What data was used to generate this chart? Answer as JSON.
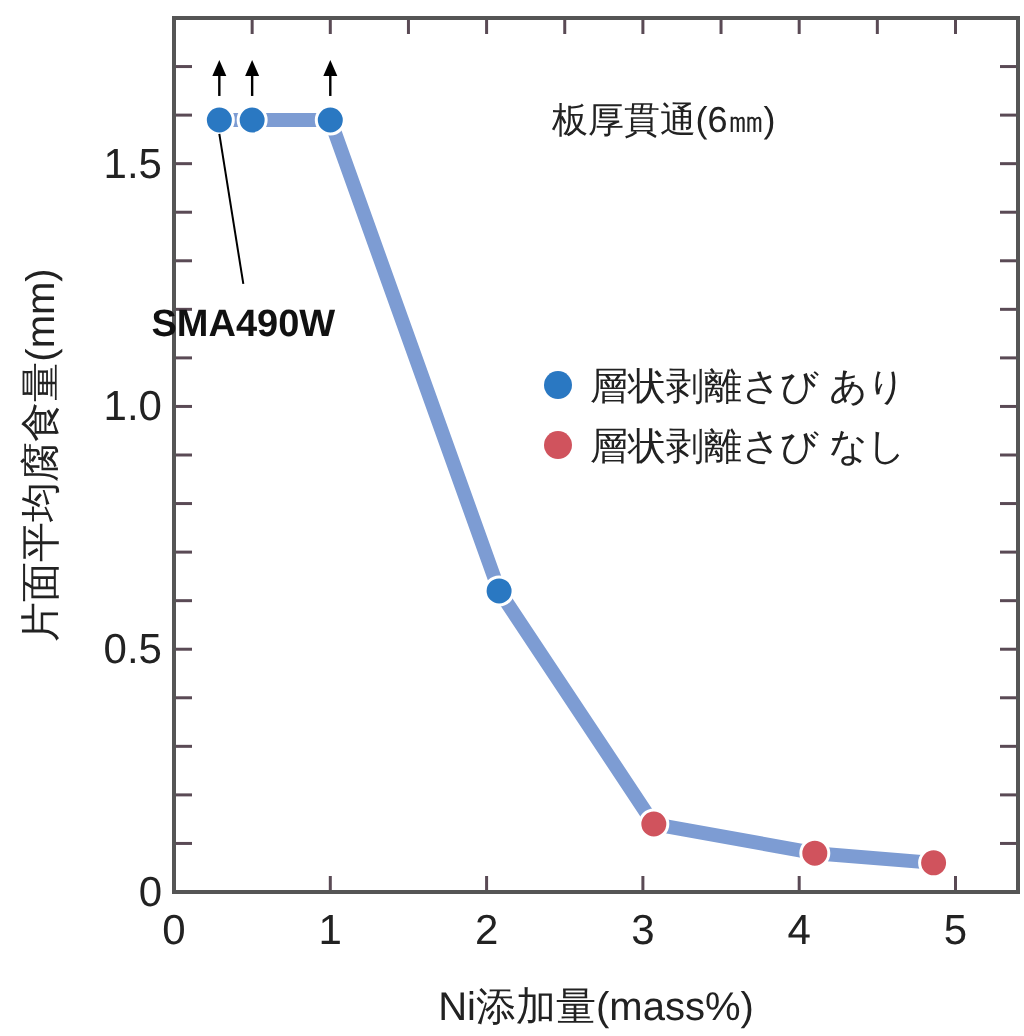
{
  "chart_data": {
    "type": "line",
    "xlabel": "Ni添加量(mass%)",
    "ylabel": "片面平均腐食量(mm)",
    "x": [
      0.29,
      0.5,
      1.0,
      2.08,
      3.07,
      4.1,
      4.86
    ],
    "series": [
      {
        "color": "#7d9cd3",
        "line_style": "solid",
        "values": [
          1.59,
          1.59,
          1.59,
          0.62,
          0.14,
          0.08,
          0.06
        ]
      },
      {
        "type": "scatter",
        "name": "層状剥離さび あり",
        "color": "#2a78c2",
        "marker": "circle",
        "values": [
          1.59,
          1.59,
          1.59,
          0.62,
          null,
          null,
          null
        ]
      },
      {
        "type": "scatter",
        "name": "層状剥離さび なし",
        "color": "#d0535d",
        "marker": "circle",
        "values": [
          null,
          null,
          null,
          null,
          0.14,
          0.08,
          0.06
        ]
      }
    ],
    "xlim": [
      0,
      5.4
    ],
    "xticks": [
      0,
      {
        "value": 0.5,
        "label": null
      },
      1,
      {
        "value": 1.5,
        "label": null
      },
      2,
      {
        "value": 2.5,
        "label": null
      },
      3,
      {
        "value": 3.5,
        "label": null
      },
      4,
      {
        "value": 4.5,
        "label": null
      },
      5
    ],
    "ylim": [
      0,
      1.8
    ],
    "yticks": [
      0,
      {
        "value": 0.1,
        "label": null
      },
      {
        "value": 0.2,
        "label": null
      },
      {
        "value": 0.3,
        "label": null
      },
      {
        "value": 0.4,
        "label": null
      },
      0.5,
      {
        "value": 0.6,
        "label": null
      },
      {
        "value": 0.7,
        "label": null
      },
      {
        "value": 0.8,
        "label": null
      },
      {
        "value": 0.9,
        "label": null
      },
      {
        "value": 1,
        "label": "1.0"
      },
      {
        "value": 1.1,
        "label": null
      },
      {
        "value": 1.2,
        "label": null
      },
      {
        "value": 1.3,
        "label": null
      },
      {
        "value": 1.4,
        "label": null
      },
      1.5,
      {
        "value": 1.6,
        "label": null
      },
      {
        "value": 1.7,
        "label": null
      }
    ],
    "legend": "right",
    "annotations": [
      "板厚貫通(6㎜)",
      {
        "text": "SMA490W",
        "x": 0.29,
        "y": 1.59
      }
    ]
  }
}
